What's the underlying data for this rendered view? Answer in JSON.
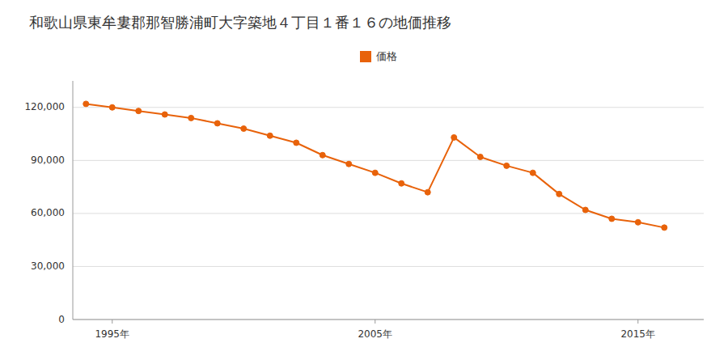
{
  "chart_data": {
    "type": "line",
    "title": "和歌山県東牟婁郡那智勝浦町大字築地４丁目１番１６の地価推移",
    "x": [
      1994,
      1995,
      1996,
      1997,
      1998,
      1999,
      2000,
      2001,
      2002,
      2003,
      2004,
      2005,
      2006,
      2007,
      2008,
      2009,
      2010,
      2011,
      2012,
      2013,
      2014,
      2015,
      2016
    ],
    "series": [
      {
        "name": "価格",
        "color": "#E8620A",
        "values": [
          122000,
          120000,
          118000,
          116000,
          114000,
          111000,
          108000,
          104000,
          100000,
          93000,
          88000,
          83000,
          77000,
          72000,
          103000,
          92000,
          87000,
          83000,
          71000,
          62000,
          57000,
          55000,
          52000
        ]
      }
    ],
    "xlim": [
      1993.5,
      2017.5
    ],
    "xticks": [
      {
        "value": 1995,
        "label": "1995年"
      },
      {
        "value": 2005,
        "label": "2005年"
      },
      {
        "value": 2015,
        "label": "2015年"
      }
    ],
    "ylim": [
      0,
      135000
    ],
    "yticks": [
      0,
      {
        "value": 30000,
        "label": "30,000"
      },
      {
        "value": 60000,
        "label": "60,000"
      },
      {
        "value": 90000,
        "label": "90,000"
      },
      {
        "value": 120000,
        "label": "120,000"
      }
    ],
    "grid": true,
    "legend": "top",
    "marker": "circle"
  }
}
